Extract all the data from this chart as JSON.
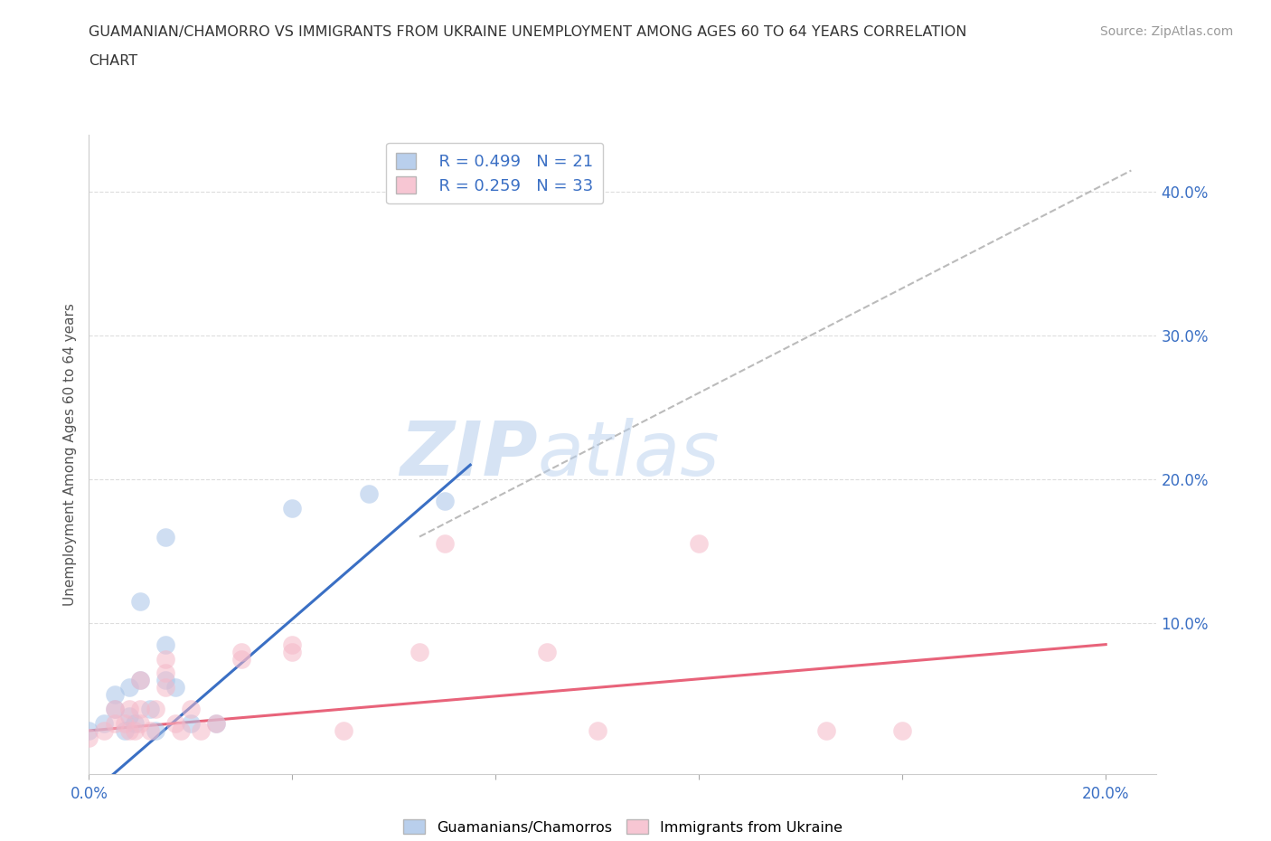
{
  "title_line1": "GUAMANIAN/CHAMORRO VS IMMIGRANTS FROM UKRAINE UNEMPLOYMENT AMONG AGES 60 TO 64 YEARS CORRELATION",
  "title_line2": "CHART",
  "source": "Source: ZipAtlas.com",
  "ylabel": "Unemployment Among Ages 60 to 64 years",
  "xlim": [
    0.0,
    0.21
  ],
  "ylim": [
    -0.005,
    0.44
  ],
  "x_ticks": [
    0.0,
    0.04,
    0.08,
    0.12,
    0.16,
    0.2
  ],
  "x_tick_labels": [
    "0.0%",
    "",
    "",
    "",
    "",
    "20.0%"
  ],
  "y_ticks": [
    0.0,
    0.1,
    0.2,
    0.3,
    0.4
  ],
  "y_tick_labels": [
    "",
    "10.0%",
    "20.0%",
    "30.0%",
    "40.0%"
  ],
  "legend_blue_r": "R = 0.499",
  "legend_blue_n": "N = 21",
  "legend_pink_r": "R = 0.259",
  "legend_pink_n": "N = 33",
  "blue_color": "#a8c4e8",
  "pink_color": "#f5b8c8",
  "blue_line_color": "#3a6fc4",
  "pink_line_color": "#e8637a",
  "diagonal_line_color": "#bbbbbb",
  "background_color": "#ffffff",
  "grid_color": "#dddddd",
  "watermark_zip": "ZIP",
  "watermark_atlas": "atlas",
  "blue_points": [
    [
      0.0,
      0.025
    ],
    [
      0.003,
      0.03
    ],
    [
      0.005,
      0.04
    ],
    [
      0.005,
      0.05
    ],
    [
      0.007,
      0.025
    ],
    [
      0.008,
      0.035
    ],
    [
      0.008,
      0.055
    ],
    [
      0.009,
      0.03
    ],
    [
      0.01,
      0.06
    ],
    [
      0.01,
      0.115
    ],
    [
      0.012,
      0.04
    ],
    [
      0.013,
      0.025
    ],
    [
      0.015,
      0.06
    ],
    [
      0.015,
      0.085
    ],
    [
      0.015,
      0.16
    ],
    [
      0.017,
      0.055
    ],
    [
      0.02,
      0.03
    ],
    [
      0.025,
      0.03
    ],
    [
      0.04,
      0.18
    ],
    [
      0.055,
      0.19
    ],
    [
      0.07,
      0.185
    ]
  ],
  "pink_points": [
    [
      0.0,
      0.02
    ],
    [
      0.003,
      0.025
    ],
    [
      0.005,
      0.03
    ],
    [
      0.005,
      0.04
    ],
    [
      0.007,
      0.03
    ],
    [
      0.008,
      0.025
    ],
    [
      0.008,
      0.04
    ],
    [
      0.009,
      0.025
    ],
    [
      0.01,
      0.03
    ],
    [
      0.01,
      0.04
    ],
    [
      0.01,
      0.06
    ],
    [
      0.012,
      0.025
    ],
    [
      0.013,
      0.04
    ],
    [
      0.015,
      0.055
    ],
    [
      0.015,
      0.065
    ],
    [
      0.015,
      0.075
    ],
    [
      0.017,
      0.03
    ],
    [
      0.018,
      0.025
    ],
    [
      0.02,
      0.04
    ],
    [
      0.022,
      0.025
    ],
    [
      0.025,
      0.03
    ],
    [
      0.03,
      0.075
    ],
    [
      0.03,
      0.08
    ],
    [
      0.04,
      0.08
    ],
    [
      0.04,
      0.085
    ],
    [
      0.05,
      0.025
    ],
    [
      0.065,
      0.08
    ],
    [
      0.07,
      0.155
    ],
    [
      0.09,
      0.08
    ],
    [
      0.1,
      0.025
    ],
    [
      0.12,
      0.155
    ],
    [
      0.145,
      0.025
    ],
    [
      0.16,
      0.025
    ]
  ],
  "blue_line": [
    [
      0.0,
      -0.02
    ],
    [
      0.075,
      0.21
    ]
  ],
  "pink_line": [
    [
      0.0,
      0.025
    ],
    [
      0.2,
      0.085
    ]
  ],
  "diag_line": [
    [
      0.065,
      0.16
    ],
    [
      0.205,
      0.415
    ]
  ]
}
